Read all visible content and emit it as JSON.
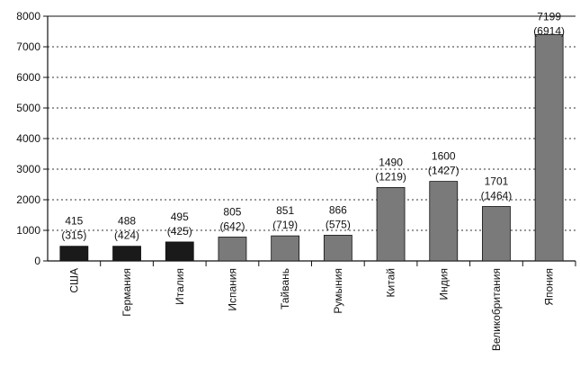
{
  "chart_data": {
    "type": "bar",
    "categories": [
      "США",
      "Германия",
      "Италия",
      "Испания",
      "Тайвань",
      "Румыния",
      "Китай",
      "Индия",
      "Великобритания",
      "Япония"
    ],
    "series": [
      {
        "values": [
          415,
          488,
          495,
          805,
          851,
          866,
          1490,
          1600,
          1701,
          7199
        ]
      }
    ],
    "bar_heights": [
      480,
      480,
      620,
      780,
      820,
      840,
      2400,
      2600,
      1780,
      7400
    ],
    "secondary_values": [
      315,
      424,
      425,
      642,
      719,
      575,
      1219,
      1427,
      1464,
      6914
    ],
    "labels_top": [
      "415",
      "488",
      "495",
      "805",
      "851",
      "866",
      "1490",
      "1600",
      "1701",
      "7199"
    ],
    "labels_bottom": [
      "(315)",
      "(424)",
      "(425)",
      "(642)",
      "(719)",
      "(575)",
      "(1219)",
      "(1427)",
      "(1464)",
      "(6914)"
    ],
    "yticks": [
      "0",
      "1000",
      "2000",
      "3000",
      "4000",
      "5000",
      "6000",
      "7000",
      "8000"
    ],
    "ylim": [
      0,
      8000
    ],
    "grid": "dotted-horizontal",
    "colors": {
      "dark": "#1a1a1a",
      "gray": "#7a7a7a",
      "bar_fill_pattern": [
        "dark",
        "dark",
        "dark",
        "gray",
        "gray",
        "gray",
        "gray",
        "gray",
        "gray",
        "gray"
      ]
    }
  }
}
